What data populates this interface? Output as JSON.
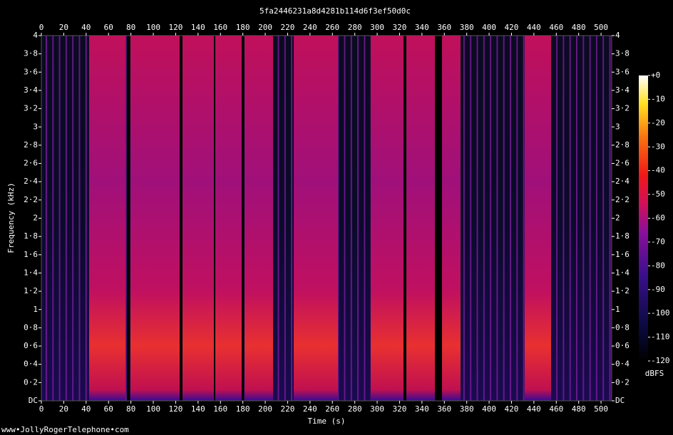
{
  "chart_data": {
    "type": "spectrogram",
    "title": "5fa2446231a8d4281b114d6f3ef50d0c",
    "x_label": "Time (s)",
    "y_label": "Frequency (kHz)",
    "xlim": [
      0,
      509.5
    ],
    "xticks": [
      0,
      20,
      40,
      60,
      80,
      100,
      120,
      140,
      160,
      180,
      200,
      220,
      240,
      260,
      280,
      300,
      320,
      340,
      360,
      380,
      400,
      420,
      440,
      460,
      480,
      500
    ],
    "ylim": [
      0,
      4
    ],
    "yticks": [
      {
        "value": 0,
        "label": "DC"
      },
      {
        "value": 0.2,
        "label": "0·2"
      },
      {
        "value": 0.4,
        "label": "0·4"
      },
      {
        "value": 0.6,
        "label": "0·6"
      },
      {
        "value": 0.8,
        "label": "0·8"
      },
      1,
      {
        "value": 1.2,
        "label": "1·2"
      },
      {
        "value": 1.4,
        "label": "1·4"
      },
      {
        "value": 1.6,
        "label": "1·6"
      },
      {
        "value": 1.8,
        "label": "1·8"
      },
      2,
      {
        "value": 2.2,
        "label": "2·2"
      },
      {
        "value": 2.4,
        "label": "2·4"
      },
      {
        "value": 2.6,
        "label": "2·6"
      },
      {
        "value": 2.8,
        "label": "2·8"
      },
      3,
      {
        "value": 3.2,
        "label": "3·2"
      },
      {
        "value": 3.4,
        "label": "3·4"
      },
      {
        "value": 3.6,
        "label": "3·6"
      },
      {
        "value": 3.8,
        "label": "3·8"
      },
      4
    ],
    "colorbar_label": "dBFS",
    "colorbar_lim": [
      -120,
      0
    ],
    "colorbar_ticks": [
      {
        "value": 0,
        "label": "+0"
      },
      -10,
      -20,
      -30,
      -40,
      -50,
      -60,
      -70,
      -80,
      -90,
      -100,
      -110,
      -120
    ],
    "footer": "www•JollyRogerTelephone•com"
  }
}
